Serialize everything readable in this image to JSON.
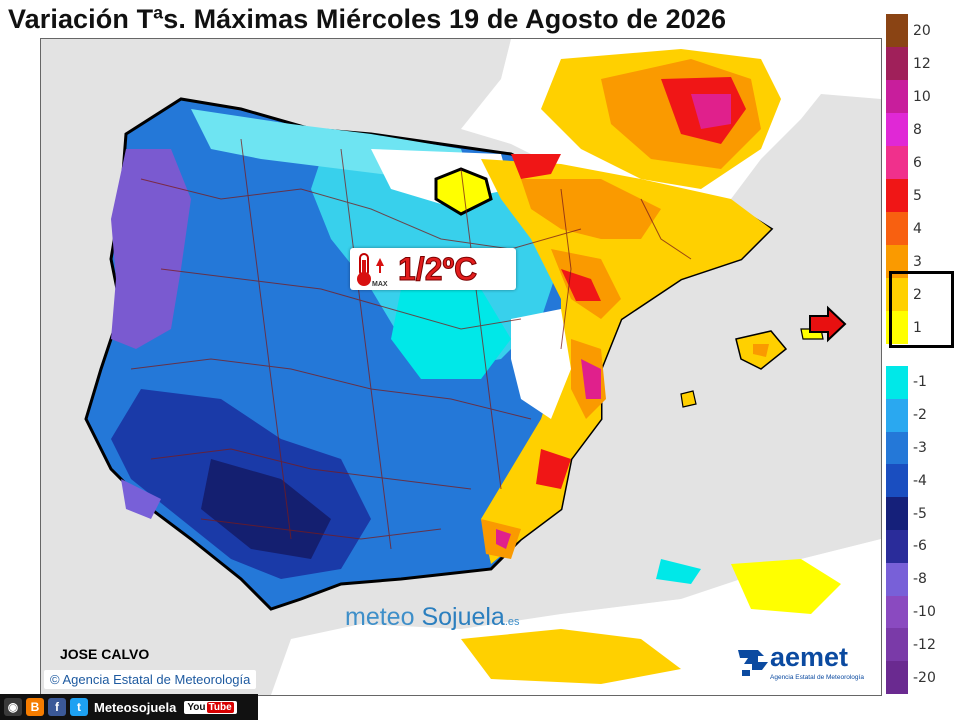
{
  "title": "Variación Tªs. Máximas Miércoles 19 de Agosto de 2026",
  "callout": {
    "value": "1/2ºC",
    "icon": "thermometer-max-icon",
    "icon_text": "MAX"
  },
  "watermark": {
    "part1": "meteo",
    "part2": "Sojuela",
    "suffix": ".es"
  },
  "author": "JOSE CALVO",
  "agency_credit": "© Agencia Estatal de Meteorología",
  "aemet_logo": {
    "name": "aemet",
    "subtitle": "Agencia Estatal de Meteorología"
  },
  "social_bar": {
    "icons": [
      "camera-icon",
      "blogger-icon",
      "facebook-icon",
      "twitter-icon"
    ],
    "handle": "Meteosojuela",
    "youtube": {
      "you": "You",
      "tube": "Tube"
    }
  },
  "highlight_arrow": "arrow-right-icon",
  "legend": {
    "items": [
      {
        "label": "20",
        "color": "#8a4414"
      },
      {
        "label": "12",
        "color": "#a0205a"
      },
      {
        "label": "10",
        "color": "#c81e9c"
      },
      {
        "label": "8",
        "color": "#e028d6"
      },
      {
        "label": "6",
        "color": "#f0308c"
      },
      {
        "label": "5",
        "color": "#f01616"
      },
      {
        "label": "4",
        "color": "#f86010"
      },
      {
        "label": "3",
        "color": "#fa9a00"
      },
      {
        "label": "2",
        "color": "#ffd000"
      },
      {
        "label": "1",
        "color": "#ffff00"
      },
      {
        "label": "-1",
        "color": "#00e8e8"
      },
      {
        "label": "-2",
        "color": "#2aa8f0"
      },
      {
        "label": "-3",
        "color": "#2478d8"
      },
      {
        "label": "-4",
        "color": "#1a4ec0"
      },
      {
        "label": "-5",
        "color": "#15207a"
      },
      {
        "label": "-6",
        "color": "#2a2c9a"
      },
      {
        "label": "-8",
        "color": "#7860d8"
      },
      {
        "label": "-10",
        "color": "#8a4ac0"
      },
      {
        "label": "-12",
        "color": "#7a3aa8"
      },
      {
        "label": "-20",
        "color": "#6a2a90"
      }
    ],
    "highlighted_range": [
      "2",
      "1"
    ]
  }
}
